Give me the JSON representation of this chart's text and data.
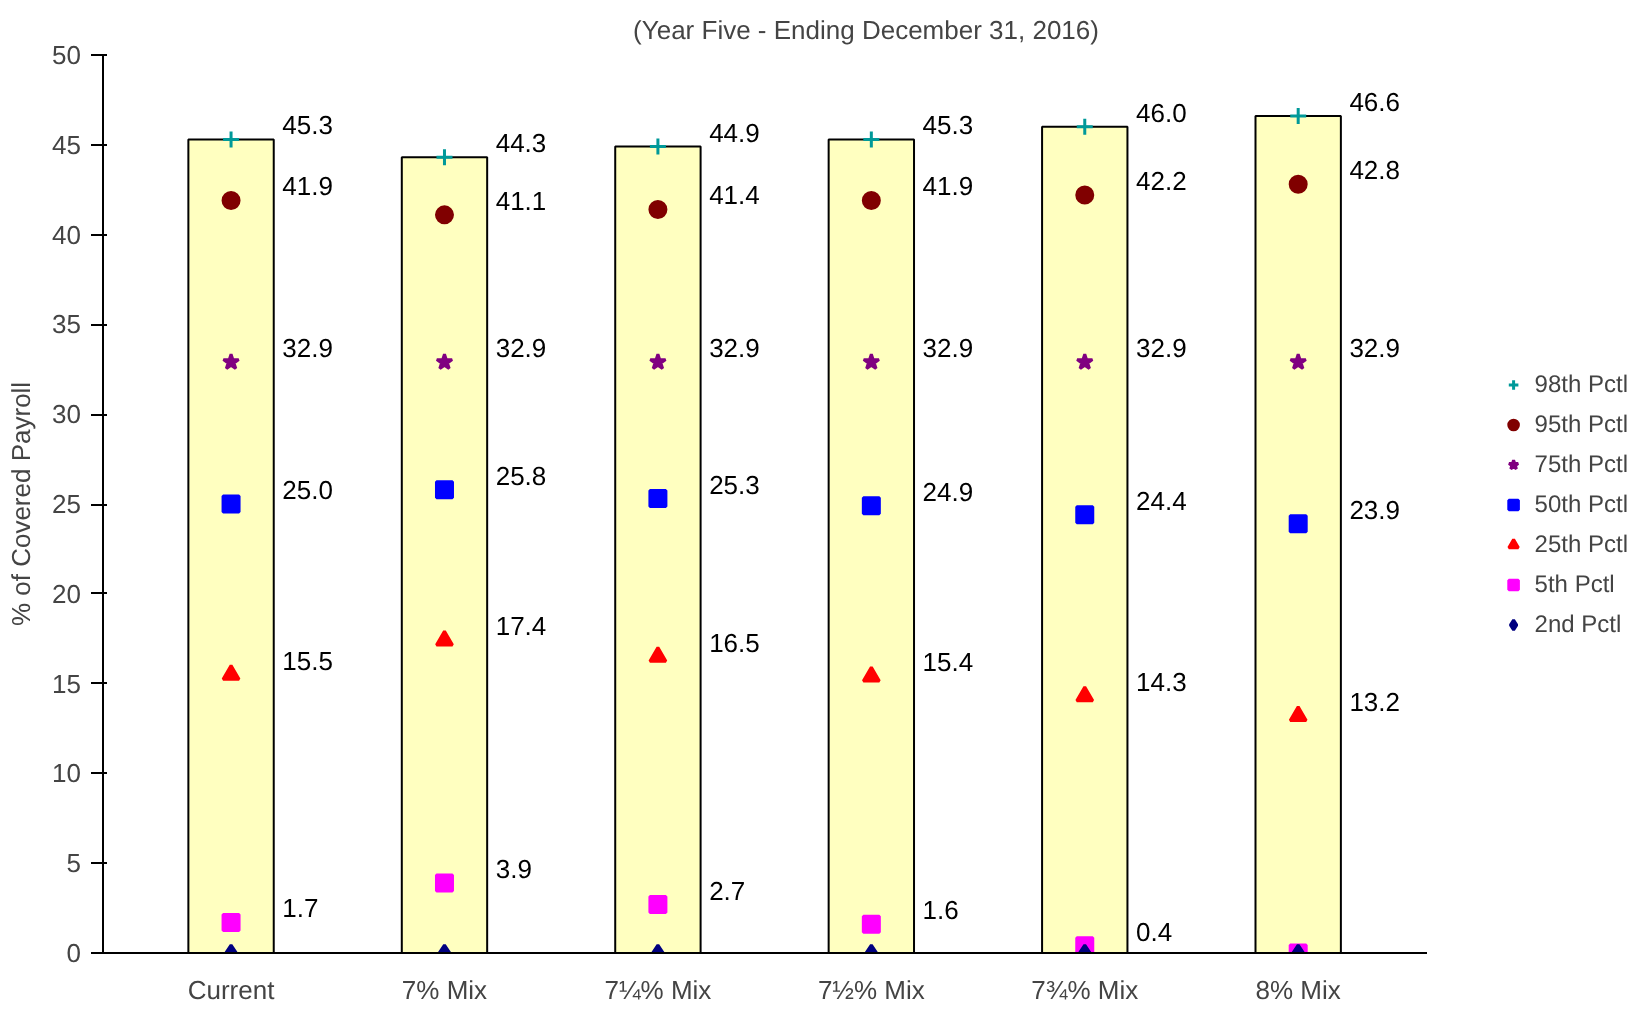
{
  "chart_data": {
    "type": "scatter",
    "title": "(Year Five - Ending December 31, 2016)",
    "ylabel": "% of Covered Payroll",
    "categories": [
      "Current",
      "7% Mix",
      "7¼% Mix",
      "7½% Mix",
      "7¾% Mix",
      "8% Mix"
    ],
    "ylim": [
      0,
      50
    ],
    "yticks": [
      0,
      5,
      10,
      15,
      20,
      25,
      30,
      35,
      40,
      45,
      50
    ],
    "grid": false,
    "legend": "right",
    "series": [
      {
        "type": "bar",
        "color": "#ffffc0",
        "values": [
          45.3,
          44.3,
          44.9,
          45.3,
          46.0,
          46.6
        ]
      },
      {
        "name": "98th Pctl",
        "color": "#009999",
        "marker": "cross",
        "values": [
          45.3,
          44.3,
          44.9,
          45.3,
          46.0,
          46.6
        ],
        "value_labels": [
          "45.3",
          "44.3",
          "44.9",
          "45.3",
          "46.0",
          "46.6"
        ]
      },
      {
        "name": "95th Pctl",
        "color": "#800000",
        "marker": "circle",
        "values": [
          41.9,
          41.1,
          41.4,
          41.9,
          42.2,
          42.8
        ],
        "value_labels": [
          "41.9",
          "41.1",
          "41.4",
          "41.9",
          "42.2",
          "42.8"
        ]
      },
      {
        "name": "75th Pctl",
        "color": "#800080",
        "marker": "star",
        "values": [
          32.9,
          32.9,
          32.9,
          32.9,
          32.9,
          32.9
        ],
        "value_labels": [
          "32.9",
          "32.9",
          "32.9",
          "32.9",
          "32.9",
          "32.9"
        ]
      },
      {
        "name": "50th Pctl",
        "color": "#0000ff",
        "marker": "square",
        "values": [
          25.0,
          25.8,
          25.3,
          24.9,
          24.4,
          23.9
        ],
        "value_labels": [
          "25.0",
          "25.8",
          "25.3",
          "24.9",
          "24.4",
          "23.9"
        ]
      },
      {
        "name": "25th Pctl",
        "color": "#ff0000",
        "marker": "triangle",
        "values": [
          15.5,
          17.4,
          16.5,
          15.4,
          14.3,
          13.2
        ],
        "value_labels": [
          "15.5",
          "17.4",
          "16.5",
          "15.4",
          "14.3",
          "13.2"
        ]
      },
      {
        "name": "5th Pctl",
        "color": "#ff00ff",
        "marker": "square",
        "values": [
          1.7,
          3.9,
          2.7,
          1.6,
          0.4,
          0.0
        ],
        "value_labels": [
          "1.7",
          "3.9",
          "2.7",
          "1.6",
          "0.4",
          null
        ]
      },
      {
        "name": "2nd Pctl",
        "color": "#000080",
        "marker": "diamond",
        "values": [
          0,
          0,
          0,
          0,
          0,
          0
        ]
      }
    ]
  }
}
